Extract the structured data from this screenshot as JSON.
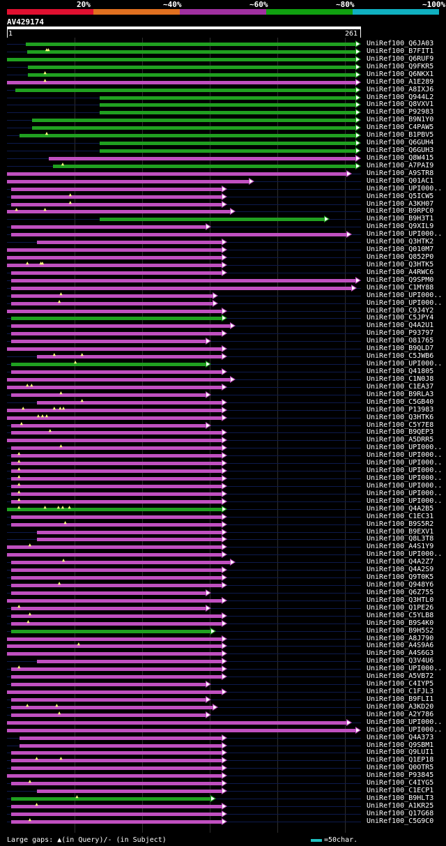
{
  "legend": [
    {
      "label": "20%",
      "color": "#e01030"
    },
    {
      "label": "~40%",
      "color": "#e07020"
    },
    {
      "label": "~60%",
      "color": "#a030a0"
    },
    {
      "label": "~80%",
      "color": "#10a010"
    },
    {
      "label": "~100%",
      "color": "#10b0c0"
    }
  ],
  "query": {
    "id": "AV429174",
    "start": "1",
    "end": "261",
    "length": 261
  },
  "hits": [
    {
      "label": "UniRef100_Q6JA03",
      "start": 22,
      "end": 421,
      "color": "green",
      "gaps": []
    },
    {
      "label": "UniRef100_B7FIT1",
      "start": 24,
      "end": 421,
      "color": "green",
      "gaps": [
        48,
        50
      ]
    },
    {
      "label": "UniRef100_Q6RUF9",
      "start": 0,
      "end": 421,
      "color": "green",
      "gaps": []
    },
    {
      "label": "UniRef100_Q9FKR5",
      "start": 25,
      "end": 421,
      "color": "green",
      "gaps": []
    },
    {
      "label": "UniRef100_Q6NKX1",
      "start": 25,
      "end": 421,
      "color": "green",
      "gaps": [
        46
      ]
    },
    {
      "label": "UniRef100_A1E289",
      "start": 0,
      "end": 421,
      "color": "magenta",
      "gaps": [
        46
      ]
    },
    {
      "label": "UniRef100_A8IXJ6",
      "start": 10,
      "end": 421,
      "color": "green",
      "gaps": []
    },
    {
      "label": "UniRef100_Q944L2",
      "start": 110,
      "end": 421,
      "color": "green",
      "gaps": []
    },
    {
      "label": "UniRef100_Q8VXV1",
      "start": 110,
      "end": 421,
      "color": "green",
      "gaps": []
    },
    {
      "label": "UniRef100_P92983",
      "start": 110,
      "end": 421,
      "color": "green",
      "gaps": []
    },
    {
      "label": "UniRef100_B9N1Y0",
      "start": 30,
      "end": 421,
      "color": "green",
      "gaps": []
    },
    {
      "label": "UniRef100_C4PAW5",
      "start": 30,
      "end": 421,
      "color": "green",
      "gaps": []
    },
    {
      "label": "UniRef100_B1PBV5",
      "start": 15,
      "end": 421,
      "color": "green",
      "gaps": [
        48
      ]
    },
    {
      "label": "UniRef100_Q6GUH4",
      "start": 110,
      "end": 421,
      "color": "green",
      "gaps": []
    },
    {
      "label": "UniRef100_Q6GUH3",
      "start": 110,
      "end": 421,
      "color": "green",
      "gaps": []
    },
    {
      "label": "UniRef100_Q8W415",
      "start": 50,
      "end": 421,
      "color": "magenta",
      "gaps": []
    },
    {
      "label": "UniRef100_A7PAI9",
      "start": 55,
      "end": 421,
      "color": "green",
      "gaps": [
        67
      ]
    },
    {
      "label": "UniRef100_A9STR8",
      "start": 0,
      "end": 410,
      "color": "magenta",
      "gaps": []
    },
    {
      "label": "UniRef100_Q01AC1",
      "start": 0,
      "end": 294,
      "color": "magenta",
      "gaps": []
    },
    {
      "label": "UniRef100_UPI000..",
      "start": 5,
      "end": 262,
      "color": "magenta",
      "gaps": []
    },
    {
      "label": "UniRef100_Q5ICW5",
      "start": 5,
      "end": 262,
      "color": "magenta",
      "gaps": [
        76
      ]
    },
    {
      "label": "UniRef100_A3KH07",
      "start": 5,
      "end": 262,
      "color": "magenta",
      "gaps": [
        76
      ]
    },
    {
      "label": "UniRef100_B9RPC0",
      "start": 0,
      "end": 272,
      "color": "magenta",
      "gaps": [
        12,
        46
      ]
    },
    {
      "label": "UniRef100_B9H3T1",
      "start": 110,
      "end": 384,
      "color": "green",
      "gaps": []
    },
    {
      "label": "UniRef100_Q9XIL9",
      "start": 5,
      "end": 243,
      "color": "magenta",
      "gaps": []
    },
    {
      "label": "UniRef100_UPI000..",
      "start": 5,
      "end": 410,
      "color": "magenta",
      "gaps": []
    },
    {
      "label": "UniRef100_Q3HTK2",
      "start": 36,
      "end": 262,
      "color": "magenta",
      "gaps": []
    },
    {
      "label": "UniRef100_Q010M7",
      "start": 0,
      "end": 262,
      "color": "magenta",
      "gaps": []
    },
    {
      "label": "UniRef100_Q852P0",
      "start": 0,
      "end": 262,
      "color": "magenta",
      "gaps": []
    },
    {
      "label": "UniRef100_Q3HTK5",
      "start": 0,
      "end": 262,
      "color": "magenta",
      "gaps": [
        25,
        41,
        43
      ]
    },
    {
      "label": "UniRef100_A4RWC6",
      "start": 5,
      "end": 262,
      "color": "magenta",
      "gaps": []
    },
    {
      "label": "UniRef100_Q9SPM0",
      "start": 5,
      "end": 421,
      "color": "magenta",
      "gaps": []
    },
    {
      "label": "UniRef100_C1MY88",
      "start": 5,
      "end": 416,
      "color": "magenta",
      "gaps": []
    },
    {
      "label": "UniRef100_UPI000..",
      "start": 5,
      "end": 251,
      "color": "magenta",
      "gaps": [
        65
      ]
    },
    {
      "label": "UniRef100_UPI000..",
      "start": 5,
      "end": 251,
      "color": "magenta",
      "gaps": [
        63
      ]
    },
    {
      "label": "UniRef100_C9J4Y2",
      "start": 0,
      "end": 262,
      "color": "magenta",
      "gaps": []
    },
    {
      "label": "UniRef100_C5JPY4",
      "start": 5,
      "end": 262,
      "color": "green",
      "gaps": []
    },
    {
      "label": "UniRef100_Q4A2U1",
      "start": 5,
      "end": 272,
      "color": "magenta",
      "gaps": []
    },
    {
      "label": "UniRef100_P93797",
      "start": 5,
      "end": 262,
      "color": "magenta",
      "gaps": []
    },
    {
      "label": "UniRef100_O81765",
      "start": 5,
      "end": 243,
      "color": "magenta",
      "gaps": []
    },
    {
      "label": "UniRef100_B9QLD7",
      "start": 0,
      "end": 262,
      "color": "magenta",
      "gaps": []
    },
    {
      "label": "UniRef100_C5JWB6",
      "start": 36,
      "end": 262,
      "color": "magenta",
      "gaps": [
        57,
        90
      ]
    },
    {
      "label": "UniRef100_UPI000..",
      "start": 5,
      "end": 243,
      "color": "green",
      "gaps": [
        82
      ]
    },
    {
      "label": "UniRef100_Q41805",
      "start": 5,
      "end": 262,
      "color": "magenta",
      "gaps": []
    },
    {
      "label": "UniRef100_C1N0J8",
      "start": 0,
      "end": 272,
      "color": "magenta",
      "gaps": []
    },
    {
      "label": "UniRef100_C1EA37",
      "start": 0,
      "end": 262,
      "color": "magenta",
      "gaps": [
        25,
        30
      ]
    },
    {
      "label": "UniRef100_B9RLA3",
      "start": 5,
      "end": 243,
      "color": "magenta",
      "gaps": [
        65
      ]
    },
    {
      "label": "UniRef100_C5GB40",
      "start": 36,
      "end": 262,
      "color": "magenta",
      "gaps": [
        90
      ]
    },
    {
      "label": "UniRef100_P13983",
      "start": 0,
      "end": 262,
      "color": "magenta",
      "gaps": [
        20,
        57,
        64,
        68
      ]
    },
    {
      "label": "UniRef100_Q3HTK6",
      "start": 0,
      "end": 262,
      "color": "magenta",
      "gaps": [
        38,
        43,
        48
      ]
    },
    {
      "label": "UniRef100_C5Y7E8",
      "start": 5,
      "end": 243,
      "color": "magenta",
      "gaps": [
        18
      ]
    },
    {
      "label": "UniRef100_B9QEP3",
      "start": 5,
      "end": 262,
      "color": "magenta",
      "gaps": [
        52
      ]
    },
    {
      "label": "UniRef100_A5DRR5",
      "start": 0,
      "end": 262,
      "color": "magenta",
      "gaps": []
    },
    {
      "label": "UniRef100_UPI000..",
      "start": 5,
      "end": 262,
      "color": "magenta",
      "gaps": [
        65
      ]
    },
    {
      "label": "UniRef100_UPI000..",
      "start": 5,
      "end": 262,
      "color": "magenta",
      "gaps": [
        15
      ]
    },
    {
      "label": "UniRef100_UPI000..",
      "start": 5,
      "end": 262,
      "color": "magenta",
      "gaps": [
        15
      ]
    },
    {
      "label": "UniRef100_UPI000..",
      "start": 5,
      "end": 262,
      "color": "magenta",
      "gaps": [
        15
      ]
    },
    {
      "label": "UniRef100_UPI000..",
      "start": 5,
      "end": 262,
      "color": "magenta",
      "gaps": [
        15
      ]
    },
    {
      "label": "UniRef100_UPI000..",
      "start": 5,
      "end": 262,
      "color": "magenta",
      "gaps": [
        15
      ]
    },
    {
      "label": "UniRef100_UPI000..",
      "start": 5,
      "end": 262,
      "color": "magenta",
      "gaps": [
        15
      ]
    },
    {
      "label": "UniRef100_UPI000..",
      "start": 5,
      "end": 262,
      "color": "magenta",
      "gaps": [
        15
      ]
    },
    {
      "label": "UniRef100_Q4A2B5",
      "start": 0,
      "end": 262,
      "color": "green",
      "gaps": [
        15,
        46,
        62,
        67,
        75
      ]
    },
    {
      "label": "UniRef100_C1EC31",
      "start": 5,
      "end": 262,
      "color": "magenta",
      "gaps": []
    },
    {
      "label": "UniRef100_B9S5R2",
      "start": 5,
      "end": 262,
      "color": "magenta",
      "gaps": [
        70
      ]
    },
    {
      "label": "UniRef100_B9EXV1",
      "start": 36,
      "end": 262,
      "color": "magenta",
      "gaps": []
    },
    {
      "label": "UniRef100_Q8L3T8",
      "start": 36,
      "end": 262,
      "color": "magenta",
      "gaps": []
    },
    {
      "label": "UniRef100_A4S1Y9",
      "start": 0,
      "end": 262,
      "color": "magenta",
      "gaps": [
        28
      ]
    },
    {
      "label": "UniRef100_UPI000..",
      "start": 0,
      "end": 262,
      "color": "magenta",
      "gaps": []
    },
    {
      "label": "UniRef100_Q4A2Z7",
      "start": 5,
      "end": 272,
      "color": "magenta",
      "gaps": [
        68
      ]
    },
    {
      "label": "UniRef100_Q4A2S9",
      "start": 5,
      "end": 262,
      "color": "magenta",
      "gaps": []
    },
    {
      "label": "UniRef100_Q9T0K5",
      "start": 5,
      "end": 262,
      "color": "magenta",
      "gaps": []
    },
    {
      "label": "UniRef100_Q948Y6",
      "start": 5,
      "end": 262,
      "color": "magenta",
      "gaps": [
        63
      ]
    },
    {
      "label": "UniRef100_Q6Z755",
      "start": 5,
      "end": 243,
      "color": "magenta",
      "gaps": []
    },
    {
      "label": "UniRef100_Q3HTL0",
      "start": 0,
      "end": 262,
      "color": "magenta",
      "gaps": []
    },
    {
      "label": "UniRef100_Q1PE26",
      "start": 5,
      "end": 243,
      "color": "magenta",
      "gaps": [
        15
      ]
    },
    {
      "label": "UniRef100_C5YLB8",
      "start": 5,
      "end": 262,
      "color": "magenta",
      "gaps": [
        28
      ]
    },
    {
      "label": "UniRef100_B9S4K0",
      "start": 5,
      "end": 262,
      "color": "magenta",
      "gaps": [
        26
      ]
    },
    {
      "label": "UniRef100_B9H5S2",
      "start": 5,
      "end": 249,
      "color": "green",
      "gaps": []
    },
    {
      "label": "UniRef100_A8J790",
      "start": 0,
      "end": 262,
      "color": "magenta",
      "gaps": []
    },
    {
      "label": "UniRef100_A4S9A6",
      "start": 0,
      "end": 262,
      "color": "magenta",
      "gaps": [
        86
      ]
    },
    {
      "label": "UniRef100_A4S6G3",
      "start": 0,
      "end": 262,
      "color": "magenta",
      "gaps": []
    },
    {
      "label": "UniRef100_Q3V4U6",
      "start": 36,
      "end": 262,
      "color": "magenta",
      "gaps": []
    },
    {
      "label": "UniRef100_UPI000..",
      "start": 5,
      "end": 262,
      "color": "magenta",
      "gaps": [
        15
      ]
    },
    {
      "label": "UniRef100_A5VB72",
      "start": 5,
      "end": 262,
      "color": "magenta",
      "gaps": []
    },
    {
      "label": "UniRef100_C4IYP5",
      "start": 5,
      "end": 243,
      "color": "magenta",
      "gaps": []
    },
    {
      "label": "UniRef100_C1FJL3",
      "start": 0,
      "end": 262,
      "color": "magenta",
      "gaps": []
    },
    {
      "label": "UniRef100_B9FLI1",
      "start": 5,
      "end": 243,
      "color": "magenta",
      "gaps": []
    },
    {
      "label": "UniRef100_A3KD20",
      "start": 5,
      "end": 251,
      "color": "magenta",
      "gaps": [
        25,
        60
      ]
    },
    {
      "label": "UniRef100_A2Y786",
      "start": 5,
      "end": 243,
      "color": "magenta",
      "gaps": [
        63
      ]
    },
    {
      "label": "UniRef100_UPI000..",
      "start": 0,
      "end": 410,
      "color": "magenta",
      "gaps": []
    },
    {
      "label": "UniRef100_UPI000..",
      "start": 0,
      "end": 421,
      "color": "magenta",
      "gaps": []
    },
    {
      "label": "UniRef100_Q4A373",
      "start": 15,
      "end": 262,
      "color": "magenta",
      "gaps": []
    },
    {
      "label": "UniRef100_Q9SBM1",
      "start": 15,
      "end": 262,
      "color": "magenta",
      "gaps": []
    },
    {
      "label": "UniRef100_Q9LUI1",
      "start": 5,
      "end": 262,
      "color": "magenta",
      "gaps": []
    },
    {
      "label": "UniRef100_Q1EP18",
      "start": 5,
      "end": 262,
      "color": "magenta",
      "gaps": [
        36,
        65
      ]
    },
    {
      "label": "UniRef100_Q0OTR5",
      "start": 5,
      "end": 262,
      "color": "magenta",
      "gaps": []
    },
    {
      "label": "UniRef100_P93845",
      "start": 0,
      "end": 262,
      "color": "magenta",
      "gaps": []
    },
    {
      "label": "UniRef100_C4IYG5",
      "start": 5,
      "end": 262,
      "color": "magenta",
      "gaps": [
        28
      ]
    },
    {
      "label": "UniRef100_C1ECP1",
      "start": 36,
      "end": 262,
      "color": "magenta",
      "gaps": []
    },
    {
      "label": "UniRef100_B9HLT3",
      "start": 5,
      "end": 249,
      "color": "green",
      "gaps": [
        84
      ]
    },
    {
      "label": "UniRef100_A1KR25",
      "start": 5,
      "end": 262,
      "color": "magenta",
      "gaps": [
        36
      ]
    },
    {
      "label": "UniRef100_Q17G68",
      "start": 5,
      "end": 262,
      "color": "magenta",
      "gaps": []
    },
    {
      "label": "UniRef100_C5G9C0",
      "start": 5,
      "end": 262,
      "color": "magenta",
      "gaps": [
        28
      ]
    }
  ],
  "footer": {
    "text": "Large gaps: ▲(in Query)/- (in Subject)",
    "scale_label": "=50char."
  }
}
